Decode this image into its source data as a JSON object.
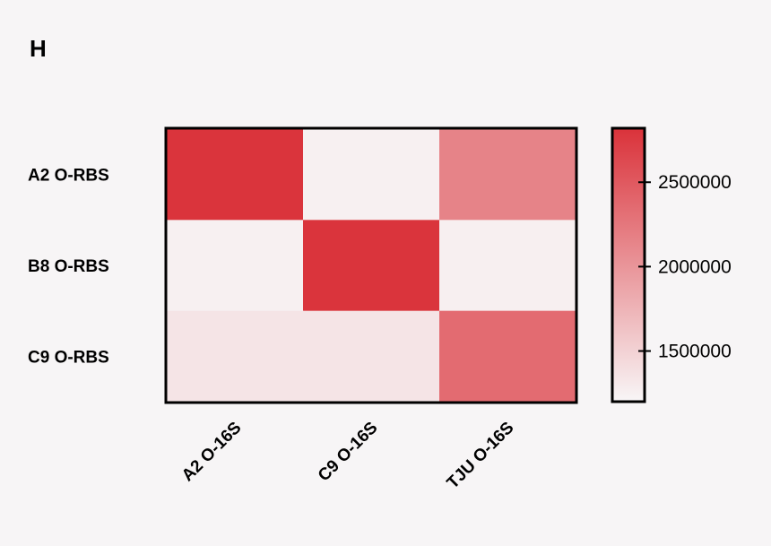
{
  "panel_label": "H",
  "chart_data": {
    "type": "heatmap",
    "rows": [
      "A2 O-RBS",
      "B8 O-RBS",
      "C9 O-RBS"
    ],
    "columns": [
      "A2 O-16S",
      "C9 O-16S",
      "TJU O-16S"
    ],
    "values": [
      [
        2800000,
        1250000,
        2150000
      ],
      [
        1250000,
        2800000,
        1260000
      ],
      [
        1350000,
        1350000,
        2350000
      ]
    ],
    "colorbar": {
      "min": 1200000,
      "max": 2820000,
      "ticks": [
        1500000,
        2000000,
        2500000
      ],
      "tick_labels": [
        "1500000",
        "2000000",
        "2500000"
      ],
      "low_color": "#f8f6f7",
      "high_color": "#da323a"
    }
  }
}
